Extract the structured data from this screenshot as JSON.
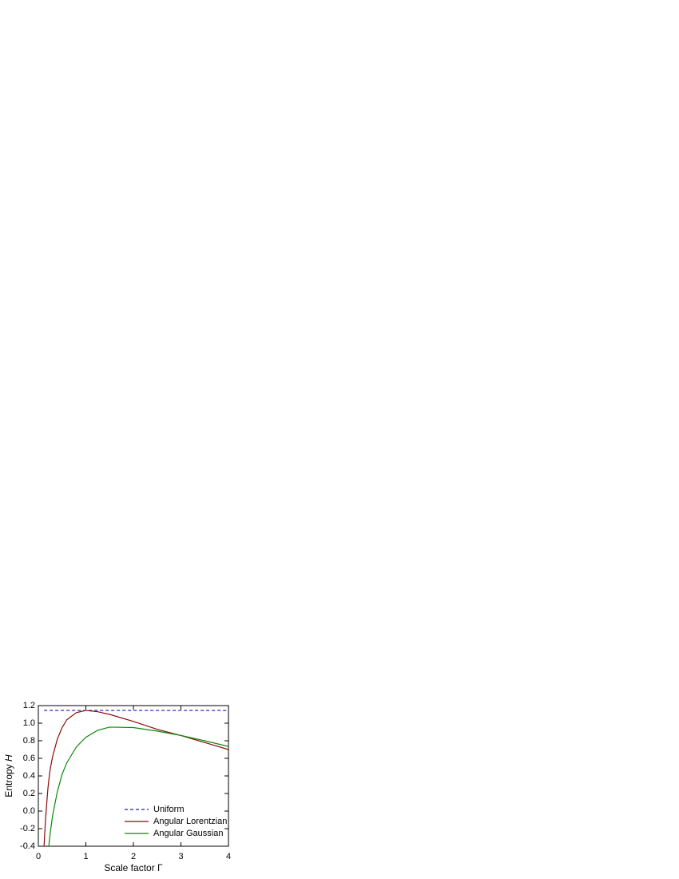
{
  "chart_data": {
    "type": "line",
    "xlabel": "Scale factor",
    "xlabel_symbol": "Γ",
    "ylabel": "Entropy",
    "ylabel_symbol": "H",
    "x": [
      0.12,
      0.15,
      0.2,
      0.22,
      0.25,
      0.3,
      0.4,
      0.5,
      0.6,
      0.8,
      1,
      1.25,
      1.5,
      2,
      2.5,
      3,
      3.5,
      4
    ],
    "series": [
      {
        "name": "Uniform",
        "color": "#1a1aa6",
        "dashed": true,
        "values": [
          1.145,
          1.145,
          1.145,
          1.145,
          1.145,
          1.145,
          1.145,
          1.145,
          1.145,
          1.145,
          1.145,
          1.145,
          1.145,
          1.145,
          1.145,
          1.145,
          1.145,
          1.145
        ]
      },
      {
        "name": "Angular Lorentzian",
        "color": "#8b0a0a",
        "values": [
          -0.4,
          -0.1,
          0.25,
          0.35,
          0.48,
          0.62,
          0.82,
          0.95,
          1.04,
          1.12,
          1.145,
          1.13,
          1.1,
          1.02,
          0.93,
          0.86,
          0.78,
          0.7
        ]
      },
      {
        "name": "Angular Gaussian",
        "color": "#0a8a0a",
        "values": [
          null,
          null,
          null,
          -0.4,
          -0.25,
          -0.05,
          0.22,
          0.42,
          0.55,
          0.73,
          0.84,
          0.92,
          0.955,
          0.95,
          0.91,
          0.86,
          0.8,
          0.735
        ]
      }
    ],
    "xlim": [
      0,
      4
    ],
    "xticks": [
      0,
      1,
      2,
      3,
      4
    ],
    "ylim": [
      -0.4,
      1.2
    ],
    "yticks": [
      -0.4,
      -0.2,
      {
        "value": 0,
        "label": "0.0"
      },
      0.2,
      0.4,
      0.6,
      0.8,
      {
        "value": 1,
        "label": "1.0"
      },
      1.2
    ],
    "legend": "lower right",
    "grid": false
  }
}
